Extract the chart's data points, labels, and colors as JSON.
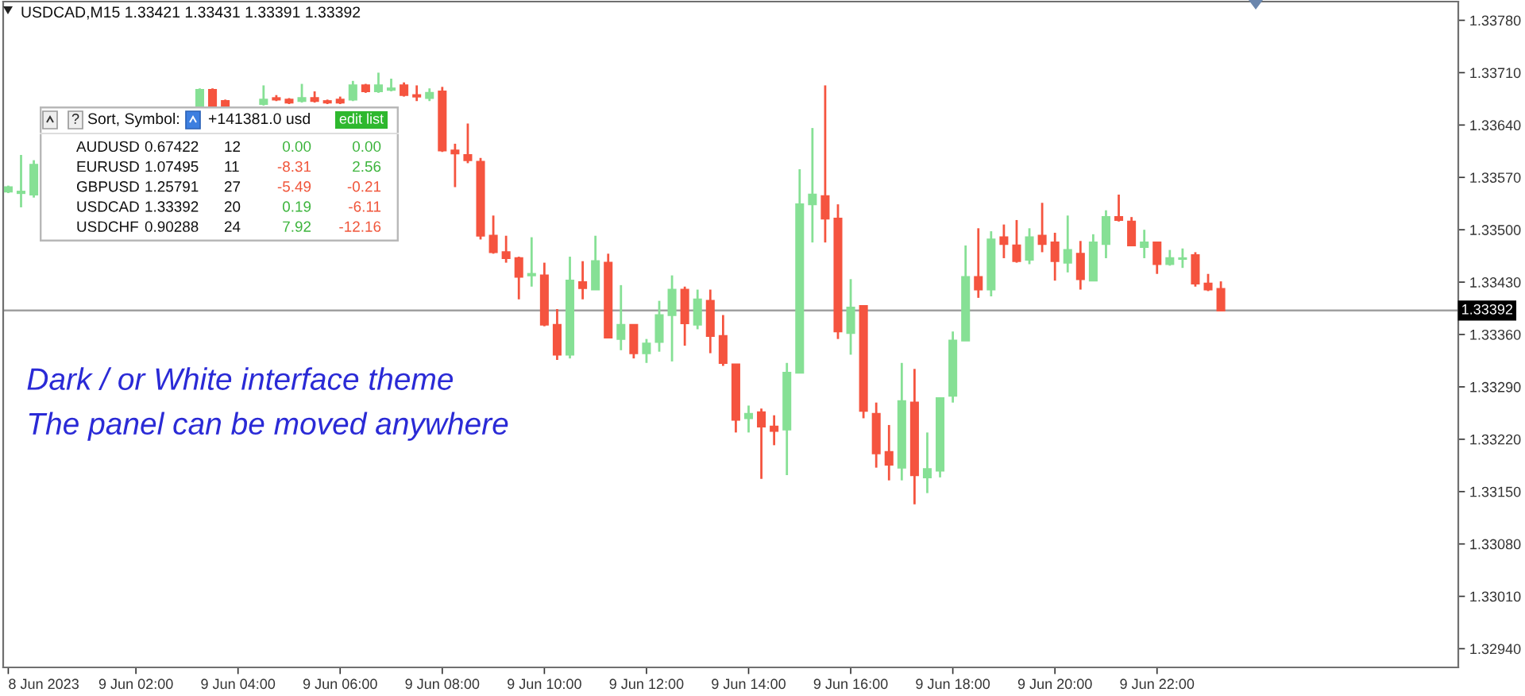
{
  "chart_data": [
    {
      "type": "candlestick",
      "title": "USDCAD,M15 1.33421 1.33431 1.33391 1.33392",
      "annotations": [
        "Dark / or White interface theme",
        "The panel can be moved anywhere"
      ],
      "x": [
        "2023-06-08T23:30",
        "2023-06-08T23:45",
        "2023-06-09T00:00",
        "2023-06-09T03:15",
        "2023-06-09T03:30",
        "2023-06-09T03:45",
        "2023-06-09T04:30",
        "2023-06-09T04:45",
        "2023-06-09T05:00",
        "2023-06-09T05:15",
        "2023-06-09T05:30",
        "2023-06-09T05:45",
        "2023-06-09T06:00",
        "2023-06-09T06:15",
        "2023-06-09T06:30",
        "2023-06-09T06:45",
        "2023-06-09T07:00",
        "2023-06-09T07:15",
        "2023-06-09T07:30",
        "2023-06-09T07:45",
        "2023-06-09T08:00",
        "2023-06-09T08:15",
        "2023-06-09T08:30",
        "2023-06-09T08:45",
        "2023-06-09T09:00",
        "2023-06-09T09:15",
        "2023-06-09T09:30",
        "2023-06-09T09:45",
        "2023-06-09T10:00",
        "2023-06-09T10:15",
        "2023-06-09T10:30",
        "2023-06-09T10:45",
        "2023-06-09T11:00",
        "2023-06-09T11:15",
        "2023-06-09T11:30",
        "2023-06-09T11:45",
        "2023-06-09T12:00",
        "2023-06-09T12:15",
        "2023-06-09T12:30",
        "2023-06-09T12:45",
        "2023-06-09T13:00",
        "2023-06-09T13:15",
        "2023-06-09T13:30",
        "2023-06-09T13:45",
        "2023-06-09T14:00",
        "2023-06-09T14:15",
        "2023-06-09T14:30",
        "2023-06-09T14:45",
        "2023-06-09T15:00",
        "2023-06-09T15:15",
        "2023-06-09T15:30",
        "2023-06-09T15:45",
        "2023-06-09T16:00",
        "2023-06-09T16:15",
        "2023-06-09T16:30",
        "2023-06-09T16:45",
        "2023-06-09T17:00",
        "2023-06-09T17:15",
        "2023-06-09T17:30",
        "2023-06-09T17:45",
        "2023-06-09T18:00",
        "2023-06-09T18:15",
        "2023-06-09T18:30",
        "2023-06-09T18:45",
        "2023-06-09T19:00",
        "2023-06-09T19:15",
        "2023-06-09T19:30",
        "2023-06-09T19:45",
        "2023-06-09T20:00",
        "2023-06-09T20:15",
        "2023-06-09T20:30",
        "2023-06-09T20:45",
        "2023-06-09T21:00",
        "2023-06-09T21:15",
        "2023-06-09T21:30",
        "2023-06-09T21:45",
        "2023-06-09T22:00",
        "2023-06-09T22:15",
        "2023-06-09T22:30",
        "2023-06-09T22:45",
        "2023-06-09T23:00",
        "2023-06-09T23:15"
      ],
      "ohlc": [
        [
          1.33551,
          1.33559,
          1.33549,
          1.33557
        ],
        [
          1.33549,
          1.336,
          1.3353,
          1.33551
        ],
        [
          1.33547,
          1.33593,
          1.33543,
          1.33587
        ],
        [
          1.33666,
          1.33689,
          1.33666,
          1.33687
        ],
        [
          1.33687,
          1.33689,
          1.33666,
          1.33666
        ],
        [
          1.33672,
          1.33674,
          1.33666,
          1.33666
        ],
        [
          1.33668,
          1.33693,
          1.33666,
          1.33674
        ],
        [
          1.33676,
          1.3368,
          1.33672,
          1.33674
        ],
        [
          1.33674,
          1.33676,
          1.33668,
          1.3367
        ],
        [
          1.33672,
          1.33695,
          1.3367,
          1.33676
        ],
        [
          1.33676,
          1.33685,
          1.3367,
          1.33672
        ],
        [
          1.33672,
          1.33674,
          1.33668,
          1.3367
        ],
        [
          1.33674,
          1.33678,
          1.33668,
          1.3367
        ],
        [
          1.33674,
          1.33699,
          1.33672,
          1.33693
        ],
        [
          1.33693,
          1.33695,
          1.33683,
          1.33685
        ],
        [
          1.33685,
          1.3371,
          1.33683,
          1.33693
        ],
        [
          1.33687,
          1.33702,
          1.33685,
          1.33689
        ],
        [
          1.33693,
          1.33697,
          1.33678,
          1.3368
        ],
        [
          1.3368,
          1.33693,
          1.33672,
          1.33678
        ],
        [
          1.33676,
          1.33689,
          1.33672,
          1.33683
        ],
        [
          1.33685,
          1.33691,
          1.33604,
          1.33606
        ],
        [
          1.33606,
          1.33615,
          1.33557,
          1.33602
        ],
        [
          1.336,
          1.33642,
          1.33589,
          1.33593
        ],
        [
          1.33591,
          1.33596,
          1.33487,
          1.33492
        ],
        [
          1.33492,
          1.33519,
          1.33468,
          1.3347
        ],
        [
          1.3347,
          1.33492,
          1.33456,
          1.33462
        ],
        [
          1.33462,
          1.33464,
          1.33407,
          1.33437
        ],
        [
          1.33439,
          1.3349,
          1.33424,
          1.33441
        ],
        [
          1.33439,
          1.33456,
          1.33371,
          1.33373
        ],
        [
          1.33373,
          1.33394,
          1.33326,
          1.33333
        ],
        [
          1.33333,
          1.33464,
          1.33328,
          1.33432
        ],
        [
          1.3343,
          1.33458,
          1.33407,
          1.33422
        ],
        [
          1.3342,
          1.33492,
          1.3342,
          1.33458
        ],
        [
          1.33456,
          1.33468,
          1.33356,
          1.33356
        ],
        [
          1.33354,
          1.33426,
          1.33339,
          1.33373
        ],
        [
          1.33373,
          1.33373,
          1.33328,
          1.33335
        ],
        [
          1.33335,
          1.33354,
          1.33322,
          1.33348
        ],
        [
          1.3335,
          1.33405,
          1.33337,
          1.33386
        ],
        [
          1.33386,
          1.33439,
          1.33324,
          1.3342
        ],
        [
          1.3342,
          1.33424,
          1.33345,
          1.33375
        ],
        [
          1.33373,
          1.3342,
          1.33367,
          1.33407
        ],
        [
          1.33405,
          1.3342,
          1.33335,
          1.33358
        ],
        [
          1.33358,
          1.33386,
          1.33318,
          1.33322
        ],
        [
          1.3332,
          1.3332,
          1.33229,
          1.33246
        ],
        [
          1.33248,
          1.33265,
          1.33229,
          1.33254
        ],
        [
          1.33256,
          1.33261,
          1.33167,
          1.33237
        ],
        [
          1.33237,
          1.33252,
          1.33212,
          1.33231
        ],
        [
          1.33233,
          1.33322,
          1.33172,
          1.33309
        ],
        [
          1.33309,
          1.33581,
          1.33309,
          1.33534
        ],
        [
          1.33534,
          1.33636,
          1.33483,
          1.33547
        ],
        [
          1.33545,
          1.33693,
          1.33483,
          1.33515
        ],
        [
          1.33515,
          1.33534,
          1.33354,
          1.33364
        ],
        [
          1.33362,
          1.33434,
          1.33333,
          1.33396
        ],
        [
          1.33398,
          1.33398,
          1.33248,
          1.33258
        ],
        [
          1.33254,
          1.33269,
          1.33182,
          1.33201
        ],
        [
          1.33203,
          1.33239,
          1.33165,
          1.33186
        ],
        [
          1.33182,
          1.33322,
          1.33165,
          1.33271
        ],
        [
          1.33269,
          1.33314,
          1.33133,
          1.33172
        ],
        [
          1.33169,
          1.33229,
          1.33148,
          1.3318
        ],
        [
          1.33178,
          1.33275,
          1.33169,
          1.33275
        ],
        [
          1.33278,
          1.33364,
          1.33269,
          1.33352
        ],
        [
          1.33352,
          1.33479,
          1.33352,
          1.33437
        ],
        [
          1.33437,
          1.33502,
          1.33409,
          1.3342
        ],
        [
          1.3342,
          1.33498,
          1.33411,
          1.33487
        ],
        [
          1.3349,
          1.33507,
          1.33462,
          1.33481
        ],
        [
          1.33479,
          1.33513,
          1.33456,
          1.33458
        ],
        [
          1.3346,
          1.33502,
          1.33454,
          1.3349
        ],
        [
          1.33492,
          1.33536,
          1.3347,
          1.33481
        ],
        [
          1.33483,
          1.33496,
          1.33432,
          1.33458
        ],
        [
          1.33456,
          1.33519,
          1.33443,
          1.33473
        ],
        [
          1.33468,
          1.33485,
          1.3342,
          1.33434
        ],
        [
          1.33432,
          1.33494,
          1.33432,
          1.33483
        ],
        [
          1.33481,
          1.33526,
          1.33462,
          1.33517
        ],
        [
          1.33517,
          1.33547,
          1.33511,
          1.33513
        ],
        [
          1.33511,
          1.33517,
          1.33479,
          1.33479
        ],
        [
          1.33477,
          1.335,
          1.33462,
          1.33483
        ],
        [
          1.33483,
          1.33483,
          1.33441,
          1.33454
        ],
        [
          1.33454,
          1.33473,
          1.33452,
          1.33462
        ],
        [
          1.33461,
          1.33475,
          1.33449,
          1.33462
        ],
        [
          1.33466,
          1.3347,
          1.33424,
          1.33428
        ],
        [
          1.33428,
          1.33441,
          1.33418,
          1.3342
        ],
        [
          1.33421,
          1.33431,
          1.33391,
          1.33392
        ]
      ],
      "colors": [
        "#86e095",
        "#86e095",
        "#86e095",
        "#86e095",
        "#f5543f",
        "#f5543f",
        "#86e095",
        "#f5543f",
        "#f5543f",
        "#86e095",
        "#f5543f",
        "#f5543f",
        "#f5543f",
        "#86e095",
        "#f5543f",
        "#86e095",
        "#86e095",
        "#f5543f",
        "#f5543f",
        "#86e095",
        "#f5543f",
        "#f5543f",
        "#f5543f",
        "#f5543f",
        "#f5543f",
        "#f5543f",
        "#f5543f",
        "#86e095",
        "#f5543f",
        "#f5543f",
        "#86e095",
        "#f5543f",
        "#86e095",
        "#f5543f",
        "#86e095",
        "#f5543f",
        "#86e095",
        "#86e095",
        "#86e095",
        "#f5543f",
        "#86e095",
        "#f5543f",
        "#f5543f",
        "#f5543f",
        "#86e095",
        "#f5543f",
        "#f5543f",
        "#86e095",
        "#86e095",
        "#86e095",
        "#f5543f",
        "#f5543f",
        "#86e095",
        "#f5543f",
        "#f5543f",
        "#f5543f",
        "#86e095",
        "#f5543f",
        "#86e095",
        "#86e095",
        "#86e095",
        "#86e095",
        "#f5543f",
        "#86e095",
        "#f5543f",
        "#f5543f",
        "#86e095",
        "#f5543f",
        "#f5543f",
        "#86e095",
        "#f5543f",
        "#86e095",
        "#86e095",
        "#f5543f",
        "#f5543f",
        "#86e095",
        "#f5543f",
        "#86e095",
        "#86e095",
        "#f5543f",
        "#f5543f",
        "#f5543f"
      ],
      "xlim": [
        "2023-06-08T23:24",
        "2023-06-10T03:54"
      ],
      "xticks": [
        {
          "value": "2023-06-08T23:30",
          "label": "8 Jun 2023"
        },
        {
          "value": "2023-06-09T02:00",
          "label": "9 Jun 02:00"
        },
        {
          "value": "2023-06-09T04:00",
          "label": "9 Jun 04:00"
        },
        {
          "value": "2023-06-09T06:00",
          "label": "9 Jun 06:00"
        },
        {
          "value": "2023-06-09T08:00",
          "label": "9 Jun 08:00"
        },
        {
          "value": "2023-06-09T10:00",
          "label": "9 Jun 10:00"
        },
        {
          "value": "2023-06-09T12:00",
          "label": "9 Jun 12:00"
        },
        {
          "value": "2023-06-09T14:00",
          "label": "9 Jun 14:00"
        },
        {
          "value": "2023-06-09T16:00",
          "label": "9 Jun 16:00"
        },
        {
          "value": "2023-06-09T18:00",
          "label": "9 Jun 18:00"
        },
        {
          "value": "2023-06-09T20:00",
          "label": "9 Jun 20:00"
        },
        {
          "value": "2023-06-09T22:00",
          "label": "9 Jun 22:00"
        }
      ],
      "ylim": [
        1.32915,
        1.33805
      ],
      "yticks": [
        {
          "value": 1.3294,
          "label": "1.32940"
        },
        {
          "value": 1.3301,
          "label": "1.33010"
        },
        {
          "value": 1.3308,
          "label": "1.33080"
        },
        {
          "value": 1.3315,
          "label": "1.33150"
        },
        {
          "value": 1.3322,
          "label": "1.33220"
        },
        {
          "value": 1.3329,
          "label": "1.33290"
        },
        {
          "value": 1.3336,
          "label": "1.33360"
        },
        {
          "value": 1.3343,
          "label": "1.33430"
        },
        {
          "value": 1.335,
          "label": "1.33500"
        },
        {
          "value": 1.3357,
          "label": "1.33570"
        },
        {
          "value": 1.3364,
          "label": "1.33640"
        },
        {
          "value": 1.3371,
          "label": "1.33710"
        },
        {
          "value": 1.3378,
          "label": "1.33780"
        }
      ],
      "ref_lines": [
        {
          "axis": "y",
          "value": 1.33392,
          "label": "1.33392",
          "color": "#a0a0a0",
          "line_style": "solid"
        }
      ]
    },
    {
      "type": "other",
      "title": "Sort, Symbol:",
      "annotations": [
        "?",
        "+141381.0 usd",
        "edit list"
      ],
      "categories": [
        "AUDUSD",
        "EURUSD",
        "GBPUSD",
        "USDCAD",
        "USDCHF"
      ],
      "data_labels": true,
      "series": [
        {
          "values": [
            0.67422,
            1.07495,
            1.25791,
            1.33392,
            0.90288
          ]
        },
        {
          "values": [
            12,
            11,
            27,
            20,
            24
          ]
        },
        {
          "values": [
            0,
            -8.31,
            -5.49,
            0.19,
            7.92
          ],
          "value_labels": [
            "0.00",
            "-8.31",
            "-5.49",
            "0.19",
            "7.92"
          ],
          "colors": [
            "#3cb43c",
            "#f0553a",
            "#f0553a",
            "#3cb43c",
            "#3cb43c"
          ]
        },
        {
          "values": [
            0,
            2.56,
            -0.21,
            -6.11,
            -12.16
          ],
          "value_labels": [
            "0.00",
            "2.56",
            "-0.21",
            "-6.11",
            "-12.16"
          ],
          "colors": [
            "#3cb43c",
            "#3cb43c",
            "#f0553a",
            "#f0553a",
            "#f0553a"
          ]
        }
      ]
    }
  ]
}
